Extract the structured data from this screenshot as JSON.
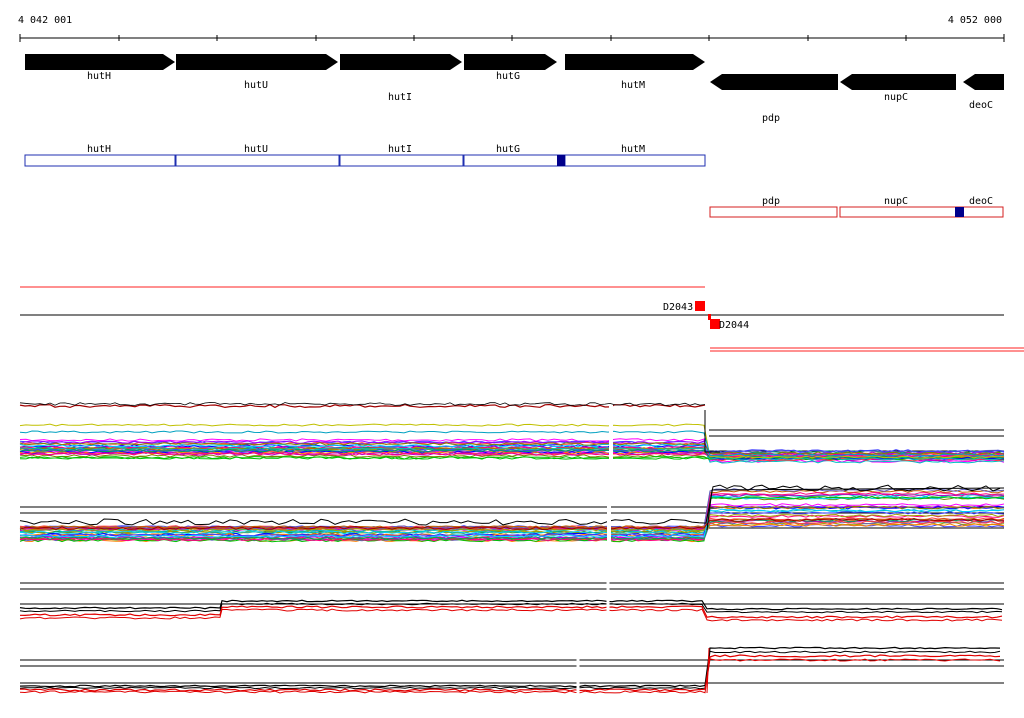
{
  "coordinates": {
    "start": "4 042 001",
    "end": "4 052 000"
  },
  "genes_arrows": [
    {
      "name": "hutH",
      "strand": "+"
    },
    {
      "name": "hutU",
      "strand": "+"
    },
    {
      "name": "hutI",
      "strand": "+"
    },
    {
      "name": "hutG",
      "strand": "+"
    },
    {
      "name": "hutM",
      "strand": "+"
    },
    {
      "name": "pdp",
      "strand": "-"
    },
    {
      "name": "nupC",
      "strand": "-"
    },
    {
      "name": "deoC",
      "strand": "-"
    }
  ],
  "gene_boxes_forward": [
    "hutH",
    "hutU",
    "hutI",
    "hutG",
    "hutM"
  ],
  "gene_boxes_reverse": [
    "pdp",
    "nupC",
    "deoC"
  ],
  "markers": [
    {
      "label": "D2043"
    },
    {
      "label": "D2044"
    }
  ],
  "colors": {
    "forward_box": "#1f2fb0",
    "reverse_box": "#d41f1f",
    "marker": "#ff0000",
    "feature_fill": "#00008b",
    "arrow": "#000000"
  }
}
